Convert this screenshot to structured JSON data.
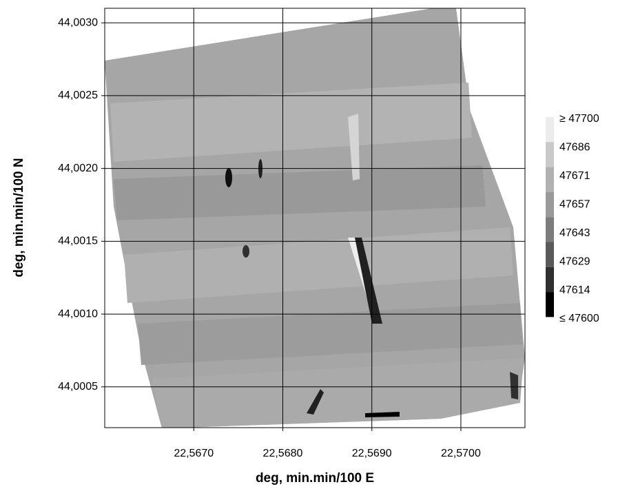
{
  "chart_data": {
    "type": "contour",
    "xlabel": "deg, min.min/100 E",
    "ylabel": "deg, min.min/100 N",
    "xlim": [
      22.566,
      22.57072
    ],
    "ylim": [
      44.00022,
      44.0031
    ],
    "xticks": [
      {
        "value": 22.567,
        "label": "22,5670"
      },
      {
        "value": 22.568,
        "label": "22,5680"
      },
      {
        "value": 22.569,
        "label": "22,5690"
      },
      {
        "value": 22.57,
        "label": "22,5700"
      }
    ],
    "yticks": [
      {
        "value": 44.0005,
        "label": "44,0005"
      },
      {
        "value": 44.001,
        "label": "44,0010"
      },
      {
        "value": 44.0015,
        "label": "44,0015"
      },
      {
        "value": 44.002,
        "label": "44,0020"
      },
      {
        "value": 44.0025,
        "label": "44,0025"
      },
      {
        "value": 44.003,
        "label": "44,0030"
      }
    ],
    "grid": true,
    "colorbar": {
      "levels": [
        {
          "value": 47700,
          "label": "≥ 47700"
        },
        47686,
        47671,
        47657,
        47643,
        47629,
        47614,
        {
          "value": 47600,
          "label": "≤ 47600"
        }
      ],
      "colors": [
        "#ececec",
        "#c9c9c9",
        "#b1b1b1",
        "#9a9a9a",
        "#7c7c7c",
        "#5a5a5a",
        "#303030",
        "#000000"
      ]
    }
  }
}
